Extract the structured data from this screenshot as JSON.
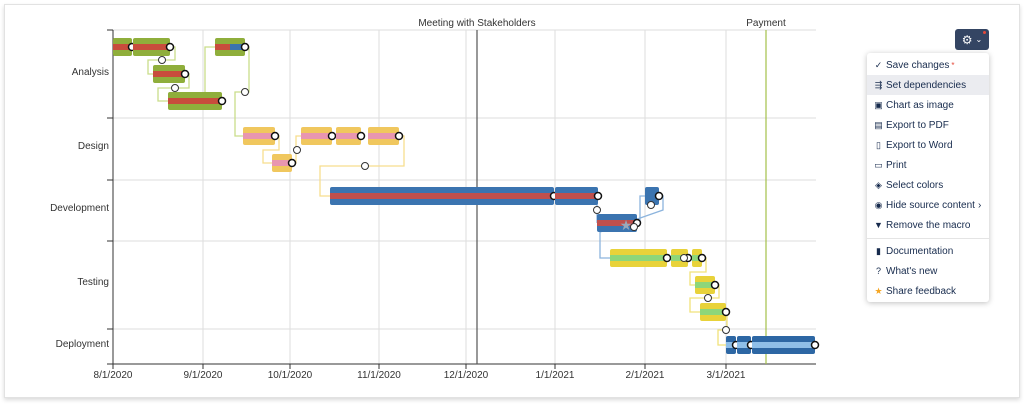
{
  "rows": [
    "Analysis",
    "Design",
    "Development",
    "Testing",
    "Deployment"
  ],
  "x_ticks": [
    "8/1/2020",
    "9/1/2020",
    "10/1/2020",
    "11/1/2020",
    "12/1/2020",
    "1/1/2021",
    "2/1/2021",
    "3/1/2021"
  ],
  "markers": [
    {
      "label": "Meeting with Stakeholders",
      "color": "#555555"
    },
    {
      "label": "Payment",
      "color": "#a4c04a"
    }
  ],
  "colors": {
    "analysis": "#8fae3b",
    "analysis_progress": "#c84c3c",
    "design": "#f0c75e",
    "design_progress": "#e896b0",
    "development": "#3b74b0",
    "development_progress": "#c0504d",
    "testing": "#e8d23a",
    "testing_progress": "#8dd67a",
    "deployment": "#2d67a4",
    "deployment_progress": "#8fbfe8",
    "menu_button": "#344563"
  },
  "menu": {
    "items": [
      {
        "icon": "check-icon",
        "label": "Save changes",
        "required": "*"
      },
      {
        "icon": "dependencies-icon",
        "label": "Set dependencies"
      },
      {
        "icon": "image-icon",
        "label": "Chart as image"
      },
      {
        "icon": "pdf-icon",
        "label": "Export to PDF"
      },
      {
        "icon": "word-icon",
        "label": "Export to Word"
      },
      {
        "icon": "print-icon",
        "label": "Print"
      },
      {
        "icon": "palette-icon",
        "label": "Select colors"
      },
      {
        "icon": "eye-icon",
        "label": "Hide source content",
        "chevron": "›"
      },
      {
        "icon": "trash-icon",
        "label": "Remove the macro"
      }
    ],
    "help": [
      {
        "icon": "document-icon",
        "label": "Documentation"
      },
      {
        "icon": "question-icon",
        "label": "What's new"
      },
      {
        "icon": "star-icon",
        "label": "Share feedback"
      }
    ]
  }
}
